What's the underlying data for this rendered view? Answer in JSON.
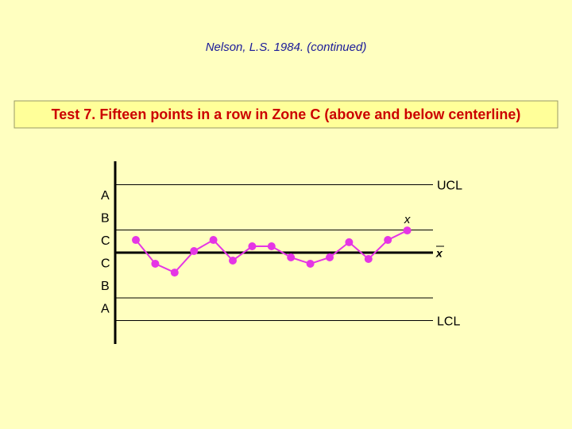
{
  "header": {
    "citation": "Nelson, L.S. 1984. (continued)",
    "title": "Test 7. Fifteen points in a row in Zone C (above and below centerline)"
  },
  "chart_data": {
    "type": "line",
    "color": "#e535e5",
    "values": [
      0.56,
      -0.49,
      -0.88,
      0.07,
      0.56,
      -0.35,
      0.28,
      0.28,
      -0.21,
      -0.49,
      -0.21,
      0.46,
      -0.28,
      0.56,
      0.98
    ],
    "ylim": [
      -4,
      4
    ],
    "limits": [
      {
        "label": "UCL",
        "value": 3
      },
      {
        "label": "LCL",
        "value": -3
      }
    ],
    "centerline": {
      "label": "x",
      "value": 0
    },
    "zone_lines": [
      1,
      -2
    ],
    "zones": [
      "A",
      "B",
      "C",
      "C",
      "B",
      "A"
    ],
    "point_label": "x"
  }
}
